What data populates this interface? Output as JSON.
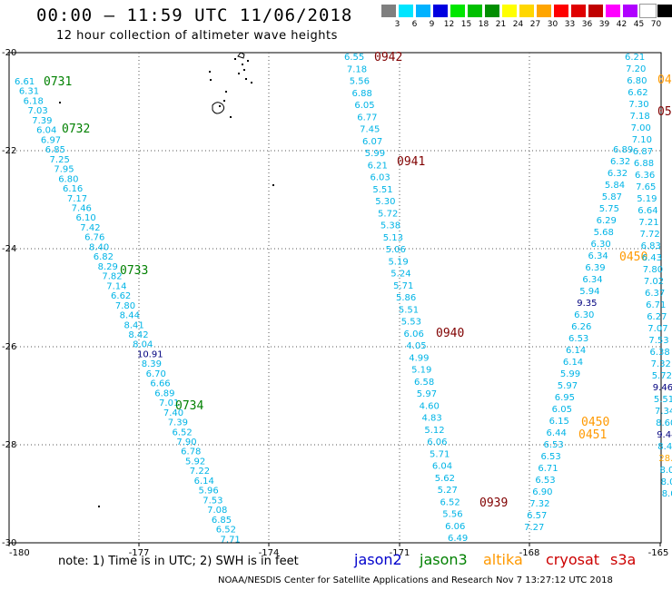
{
  "header": {
    "title": "00:00 – 11:59 UTC 11/06/2018",
    "subtitle": "12 hour collection of altimeter wave heights"
  },
  "legend": {
    "unit": "(ft)",
    "bins": [
      {
        "label": "3",
        "color": "#7f7f7f"
      },
      {
        "label": "6",
        "color": "#00e5ff"
      },
      {
        "label": "9",
        "color": "#00b2ff"
      },
      {
        "label": "12",
        "color": "#0000e0"
      },
      {
        "label": "15",
        "color": "#00e600"
      },
      {
        "label": "18",
        "color": "#00c000"
      },
      {
        "label": "21",
        "color": "#008e00"
      },
      {
        "label": "24",
        "color": "#ffff00"
      },
      {
        "label": "27",
        "color": "#ffd700"
      },
      {
        "label": "30",
        "color": "#ffa500"
      },
      {
        "label": "33",
        "color": "#ff0000"
      },
      {
        "label": "36",
        "color": "#e00000"
      },
      {
        "label": "39",
        "color": "#c00000"
      },
      {
        "label": "42",
        "color": "#ff00ff"
      },
      {
        "label": "45",
        "color": "#b000ff"
      },
      {
        "label": "70",
        "color": "#ffffff"
      },
      {
        "label": "",
        "color": "#000000"
      }
    ]
  },
  "map": {
    "lon_ticks": [
      "-180",
      "-177",
      "-174",
      "-171",
      "-168",
      "-165"
    ],
    "lat_ticks": [
      "-20",
      "-22",
      "-24",
      "-26",
      "-28",
      "-30"
    ],
    "grid": "dotted",
    "colors": {
      "cyan": "#00b4e6",
      "navy": "#00007f",
      "jason3": "#008000",
      "cryosat": "#800000",
      "altika": "#ff9900"
    },
    "passes": [
      {
        "satellite": "jason3",
        "labels": [
          "0731",
          "0732",
          "0733",
          "0734"
        ],
        "values": [
          "6.61",
          "6.31",
          "6.18",
          "7.03",
          "7.39",
          "6.04",
          "6.97",
          "6.85",
          "7.25",
          "7.95",
          "6.80",
          "6.16",
          "7.17",
          "7.46",
          "6.10",
          "7.42",
          "6.76",
          "8.40",
          "6.82",
          "8.29",
          "7.82",
          "7.14",
          "6.62",
          "7.80",
          "8.44",
          "8.41",
          "8.42",
          "8.04",
          "10.91",
          "8.39",
          "6.70",
          "6.66",
          "6.89",
          "7.01",
          "7.40",
          "7.39",
          "6.52",
          "7.90",
          "6.78",
          "5.92",
          "7.22",
          "6.14",
          "5.96",
          "7.53",
          "7.08",
          "6.85",
          "6.52",
          "7.71",
          "7.76"
        ]
      },
      {
        "satellite": "cryosat",
        "labels": [
          "0942",
          "0941",
          "0940",
          "0939"
        ],
        "values": [
          "6.55",
          "7.18",
          "5.56",
          "6.88",
          "6.05",
          "6.77",
          "7.45",
          "6.07",
          "5.99",
          "6.21",
          "6.03",
          "5.51",
          "5.30",
          "5.72",
          "5.38",
          "5.13",
          "5.06",
          "5.19",
          "5.24",
          "5.71",
          "5.86",
          "5.51",
          "5.53",
          "6.06",
          "4.05",
          "4.99",
          "5.19",
          "6.58",
          "5.97",
          "4.60",
          "4.83",
          "5.12",
          "6.06",
          "5.71",
          "6.04",
          "5.62",
          "5.27",
          "6.52",
          "5.56",
          "6.06",
          "6.49",
          "6.01",
          "6.46"
        ]
      },
      {
        "satellite": "cyan-east",
        "values": [
          "6.89",
          "6.32",
          "6.32",
          "5.84",
          "5.87",
          "5.75",
          "6.29",
          "5.68",
          "6.30",
          "6.34",
          "6.39",
          "6.34",
          "5.94",
          "9.35",
          "6.30",
          "6.26",
          "6.53",
          "6.14",
          "6.14",
          "5.99",
          "5.97",
          "6.95",
          "6.05",
          "6.15",
          "6.44",
          "6.53",
          "6.53",
          "6.71",
          "6.53",
          "6.90",
          "7.32",
          "6.57",
          "7.27"
        ]
      },
      {
        "satellite": "altika",
        "labels": [
          "0450",
          "0450",
          "0451"
        ]
      },
      {
        "satellite": "cyan-far-east",
        "values": [
          "6.21",
          "7.20",
          "6.80",
          "6.62",
          "7.30",
          "7.18",
          "7.00",
          "7.10",
          "6.87",
          "6.88",
          "6.36",
          "7.65",
          "5.19",
          "6.64",
          "7.21",
          "7.72",
          "6.83",
          "6.43",
          "7.80",
          "7.02",
          "6.37",
          "6.71",
          "6.27",
          "7.07",
          "7.53",
          "6.38",
          "7.32",
          "5.72",
          "9.46",
          "5.51",
          "7.34",
          "8.60",
          "9.44",
          "8.40",
          "28.0",
          "8.06",
          "8.00",
          "8.06"
        ]
      },
      {
        "satellite": "altika-edge",
        "labels": [
          "04",
          "05"
        ]
      }
    ]
  },
  "footer": {
    "note": "note:  1) Time is in UTC;  2) SWH is in feet",
    "missions": [
      {
        "name": "jason2",
        "color": "#0000cc"
      },
      {
        "name": "jason3",
        "color": "#008000"
      },
      {
        "name": "altika",
        "color": "#ff9900"
      },
      {
        "name": "cryosat",
        "color": "#cc0000"
      },
      {
        "name": "s3a",
        "color": "#cc0000"
      }
    ],
    "credit": "NOAA/NESDIS Center for Satellite Applications and Research   Nov  7 13:27:12 UTC 2018"
  }
}
